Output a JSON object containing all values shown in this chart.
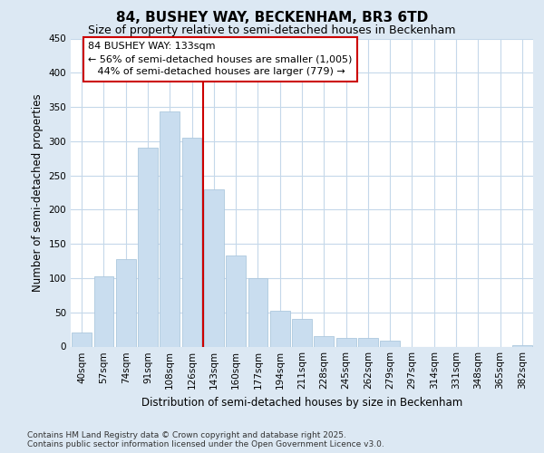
{
  "title": "84, BUSHEY WAY, BECKENHAM, BR3 6TD",
  "subtitle": "Size of property relative to semi-detached houses in Beckenham",
  "xlabel": "Distribution of semi-detached houses by size in Beckenham",
  "ylabel": "Number of semi-detached properties",
  "categories": [
    "40sqm",
    "57sqm",
    "74sqm",
    "91sqm",
    "108sqm",
    "126sqm",
    "143sqm",
    "160sqm",
    "177sqm",
    "194sqm",
    "211sqm",
    "228sqm",
    "245sqm",
    "262sqm",
    "279sqm",
    "297sqm",
    "314sqm",
    "331sqm",
    "348sqm",
    "365sqm",
    "382sqm"
  ],
  "values": [
    20,
    103,
    128,
    290,
    343,
    305,
    230,
    133,
    100,
    52,
    40,
    15,
    13,
    12,
    8,
    0,
    0,
    0,
    0,
    0,
    2
  ],
  "bar_color": "#c9ddef",
  "bar_edge_color": "#adc8de",
  "vline_x": 5.5,
  "vline_color": "#cc0000",
  "annotation_line1": "84 BUSHEY WAY: 133sqm",
  "annotation_line2": "← 56% of semi-detached houses are smaller (1,005)",
  "annotation_line3": "   44% of semi-detached houses are larger (779) →",
  "annotation_box_color": "#ffffff",
  "annotation_box_edge": "#cc0000",
  "ylim": [
    0,
    450
  ],
  "yticks": [
    0,
    50,
    100,
    150,
    200,
    250,
    300,
    350,
    400,
    450
  ],
  "footer": "Contains HM Land Registry data © Crown copyright and database right 2025.\nContains public sector information licensed under the Open Government Licence v3.0.",
  "bg_color": "#dce8f3",
  "plot_bg_color": "#ffffff",
  "grid_color": "#c5d8ea",
  "title_fontsize": 11,
  "subtitle_fontsize": 9,
  "axis_label_fontsize": 8.5,
  "tick_fontsize": 7.5,
  "annotation_fontsize": 8,
  "footer_fontsize": 6.5
}
